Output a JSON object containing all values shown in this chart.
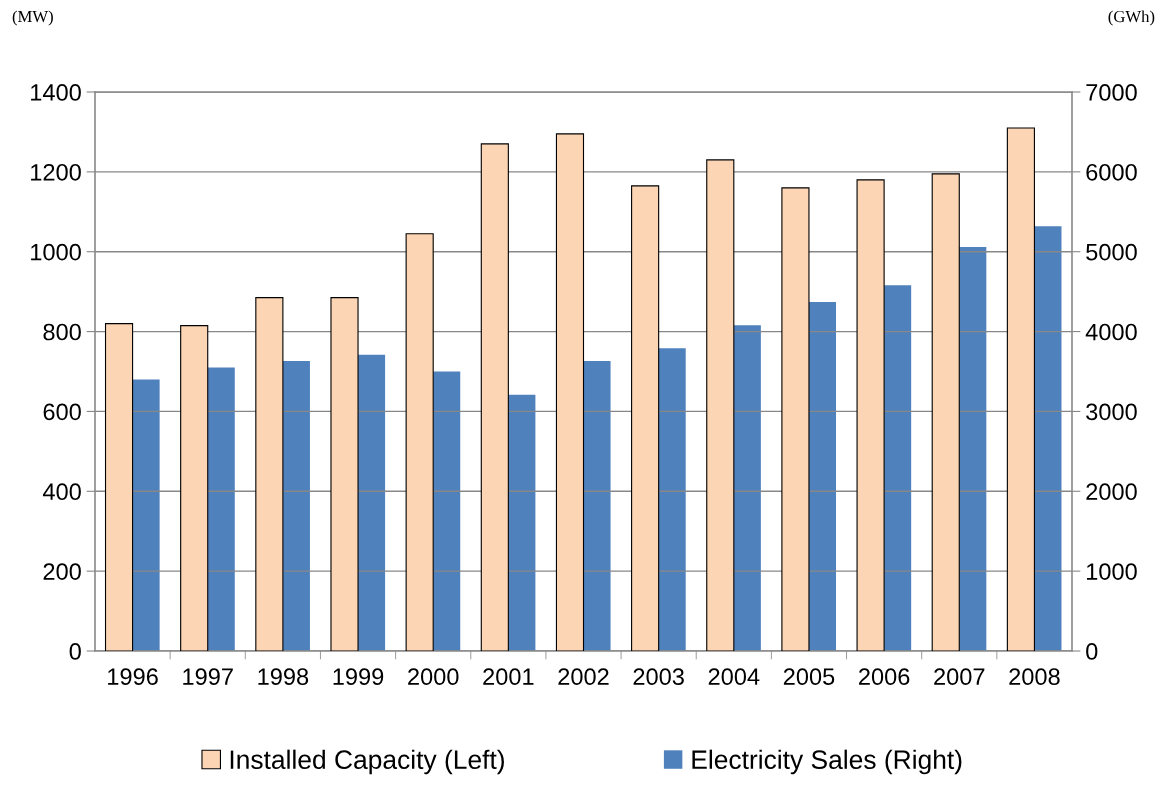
{
  "chart_data": {
    "type": "bar",
    "ylabel": "(MW)",
    "y2label": "(GWh)",
    "categories": [
      "1996",
      "1997",
      "1998",
      "1999",
      "2000",
      "2001",
      "2002",
      "2003",
      "2004",
      "2005",
      "2006",
      "2007",
      "2008"
    ],
    "series": [
      {
        "name": "Installed Capacity (Left)",
        "color": "#fcd5b4",
        "values": [
          820,
          815,
          885,
          885,
          1045,
          1270,
          1295,
          1165,
          1230,
          1160,
          1180,
          1195,
          1310
        ]
      },
      {
        "name": "Electricity Sales (Right)",
        "color": "#4f81bd",
        "axis": "y2",
        "values": [
          3400,
          3550,
          3630,
          3710,
          3500,
          3210,
          3630,
          3790,
          4080,
          4370,
          4580,
          5060,
          5320
        ]
      }
    ],
    "ylim": [
      0,
      1400
    ],
    "yticks": [
      0,
      200,
      400,
      600,
      800,
      1000,
      1200,
      1400
    ],
    "y2lim": [
      0,
      7000
    ],
    "y2ticks": [
      0,
      1000,
      2000,
      3000,
      4000,
      5000,
      6000,
      7000
    ],
    "grid": "y",
    "legend": "bottom"
  }
}
